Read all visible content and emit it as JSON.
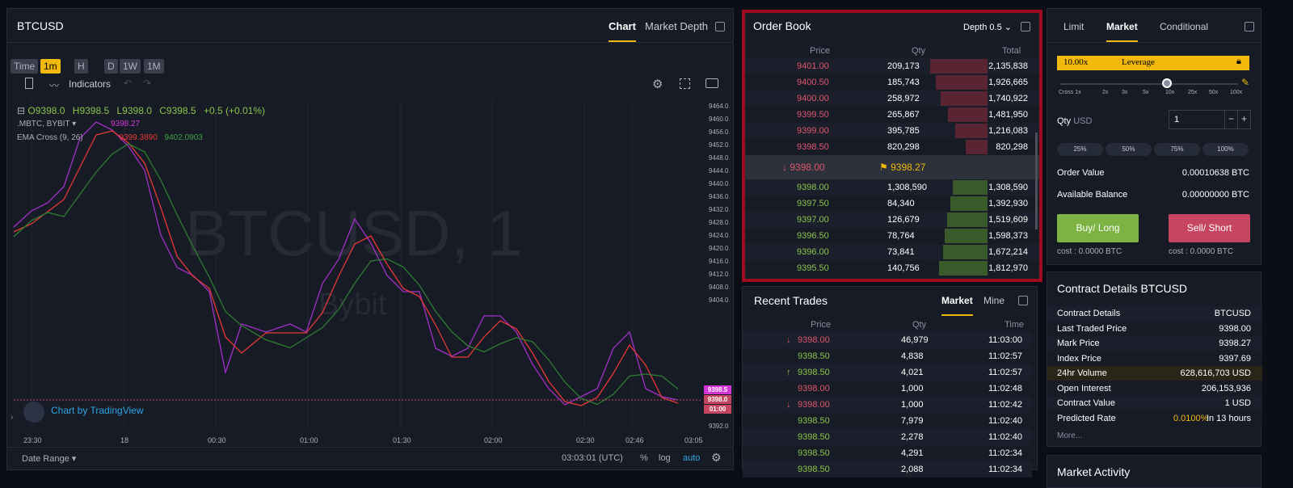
{
  "chart": {
    "symbol": "BTCUSD",
    "tabs": [
      "Chart",
      "Market Depth"
    ],
    "intervals": [
      "Time",
      "1m",
      "H",
      "D",
      "1W",
      "1M"
    ],
    "toolbar": {
      "indicators": "Indicators"
    },
    "ohlc": {
      "o": "O9398.0",
      "h": "H9398.5",
      "l": "L9398.0",
      "c": "C9398.5",
      "chg": "+0.5 (+0.01%)"
    },
    "study1": {
      "name": ".MBTC, BYBIT",
      "value": "9398.27"
    },
    "study2": {
      "name": "EMA Cross (9, 26)",
      "v1": "9399.3890",
      "v2": "9402.0903"
    },
    "watermark": "BTCUSD, 1",
    "watermark2": "Bybit",
    "yticks": [
      "9464.0",
      "9460.0",
      "9456.0",
      "9452.0",
      "9448.0",
      "9444.0",
      "9440.0",
      "9436.0",
      "9432.0",
      "9428.0",
      "9424.0",
      "9420.0",
      "9416.0",
      "9412.0",
      "9408.0",
      "9404.0",
      "9398.5",
      "9398.0",
      "01:00",
      "9392.0"
    ],
    "xticks": [
      "23:30",
      "18",
      "00:30",
      "01:00",
      "01:30",
      "02:00",
      "02:30",
      "02:46",
      "03:05"
    ],
    "tv_brand": "Chart by TradingView",
    "footer": {
      "date_range": "Date Range",
      "time": "03:03:01 (UTC)",
      "pct": "%",
      "log": "log",
      "auto": "auto"
    }
  },
  "orderbook": {
    "title": "Order Book",
    "depth": "Depth 0.5",
    "cols": [
      "Price",
      "Qty",
      "Total"
    ],
    "asks": [
      [
        "9401.00",
        "209,173",
        "2,135,838"
      ],
      [
        "9400.50",
        "185,743",
        "1,926,665"
      ],
      [
        "9400.00",
        "258,972",
        "1,740,922"
      ],
      [
        "9399.50",
        "265,867",
        "1,481,950"
      ],
      [
        "9399.00",
        "395,785",
        "1,216,083"
      ],
      [
        "9398.50",
        "820,298",
        "820,298"
      ]
    ],
    "mid": {
      "last": "9398.00",
      "mark": "9398.27"
    },
    "bids": [
      [
        "9398.00",
        "1,308,590",
        "1,308,590"
      ],
      [
        "9397.50",
        "84,340",
        "1,392,930"
      ],
      [
        "9397.00",
        "126,679",
        "1,519,609"
      ],
      [
        "9396.50",
        "78,764",
        "1,598,373"
      ],
      [
        "9396.00",
        "73,841",
        "1,672,214"
      ],
      [
        "9395.50",
        "140,756",
        "1,812,970"
      ]
    ]
  },
  "trades": {
    "title": "Recent Trades",
    "tabs": [
      "Market",
      "Mine"
    ],
    "cols": [
      "Price",
      "Qty",
      "Time"
    ],
    "rows": [
      [
        "9398.00",
        "46,979",
        "11:03:00",
        "sell-arrow"
      ],
      [
        "9398.50",
        "4,838",
        "11:02:57",
        "buy"
      ],
      [
        "9398.50",
        "4,021",
        "11:02:57",
        "buy-arrow"
      ],
      [
        "9398.00",
        "1,000",
        "11:02:48",
        "sell"
      ],
      [
        "9398.00",
        "1,000",
        "11:02:42",
        "sell-arrow"
      ],
      [
        "9398.50",
        "7,979",
        "11:02:40",
        "buy"
      ],
      [
        "9398.50",
        "2,278",
        "11:02:40",
        "buy"
      ],
      [
        "9398.50",
        "4,291",
        "11:02:34",
        "buy"
      ],
      [
        "9398.50",
        "2,088",
        "11:02:34",
        "buy"
      ]
    ]
  },
  "order": {
    "tabs": [
      "Limit",
      "Market",
      "Conditional"
    ],
    "leverage": "10.00x",
    "leverage_label": "Leverage",
    "lev_ticks": [
      "Cross 1x",
      "2x",
      "3x",
      "5x",
      "10x",
      "25x",
      "50x",
      "100x"
    ],
    "qty_label": "Qty",
    "qty_unit": "USD",
    "qty_value": "1",
    "pcts": [
      "25%",
      "50%",
      "75%",
      "100%"
    ],
    "order_value_label": "Order Value",
    "order_value": "0.00010638 BTC",
    "avail_label": "Available Balance",
    "avail": "0.00000000 BTC",
    "buy": "Buy/ Long",
    "sell": "Sell/ Short",
    "cost_buy": "cost : 0.0000 BTC",
    "cost_sell": "cost : 0.0000 BTC",
    "colors": {
      "buy": "#7cb342",
      "sell": "#c64560",
      "accent": "#f0b90b"
    }
  },
  "contract": {
    "title": "Contract Details BTCUSD",
    "rows": [
      [
        "Contract Details",
        "BTCUSD"
      ],
      [
        "Last Traded Price",
        "9398.00"
      ],
      [
        "Mark Price",
        "9398.27"
      ],
      [
        "Index Price",
        "9397.69"
      ],
      [
        "24hr Volume",
        "628,616,703 USD"
      ],
      [
        "Open Interest",
        "206,153,936"
      ],
      [
        "Contract Value",
        "1 USD"
      ],
      [
        "Predicted Rate",
        "0.0100%",
        "In 13 hours"
      ]
    ],
    "more": "More..."
  },
  "activity": {
    "title": "Market Activity"
  }
}
